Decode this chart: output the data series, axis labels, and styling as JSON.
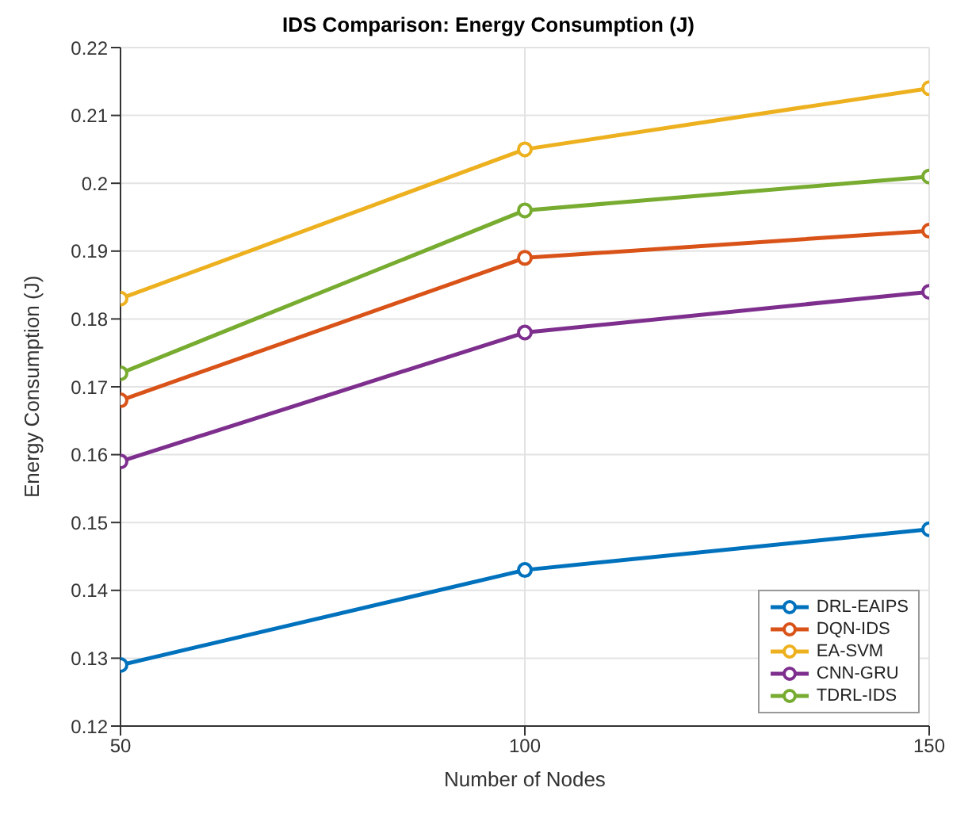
{
  "chart_data": {
    "type": "line",
    "title": "IDS Comparison: Energy Consumption (J)",
    "xlabel": "Number of Nodes",
    "ylabel": "Energy Consumption (J)",
    "x": [
      50,
      100,
      150
    ],
    "series": [
      {
        "name": "DRL-EAIPS",
        "color": "#0072bd",
        "values": [
          0.129,
          0.143,
          0.149
        ]
      },
      {
        "name": "DQN-IDS",
        "color": "#d95319",
        "values": [
          0.168,
          0.189,
          0.193
        ]
      },
      {
        "name": "EA-SVM",
        "color": "#edb120",
        "values": [
          0.183,
          0.205,
          0.214
        ]
      },
      {
        "name": "CNN-GRU",
        "color": "#7e2f8e",
        "values": [
          0.159,
          0.178,
          0.184
        ]
      },
      {
        "name": "TDRL-IDS",
        "color": "#77ac30",
        "values": [
          0.172,
          0.196,
          0.201
        ]
      }
    ],
    "xlim": [
      50,
      150
    ],
    "xticks": [
      50,
      100,
      150
    ],
    "ylim": [
      0.12,
      0.22
    ],
    "yticks": [
      0.12,
      0.13,
      0.14,
      0.15,
      0.16,
      0.17,
      0.18,
      0.19,
      0.2,
      0.21,
      0.22
    ],
    "grid": true,
    "legend": "bottom right",
    "marker": "circle",
    "line_style": "solid"
  }
}
